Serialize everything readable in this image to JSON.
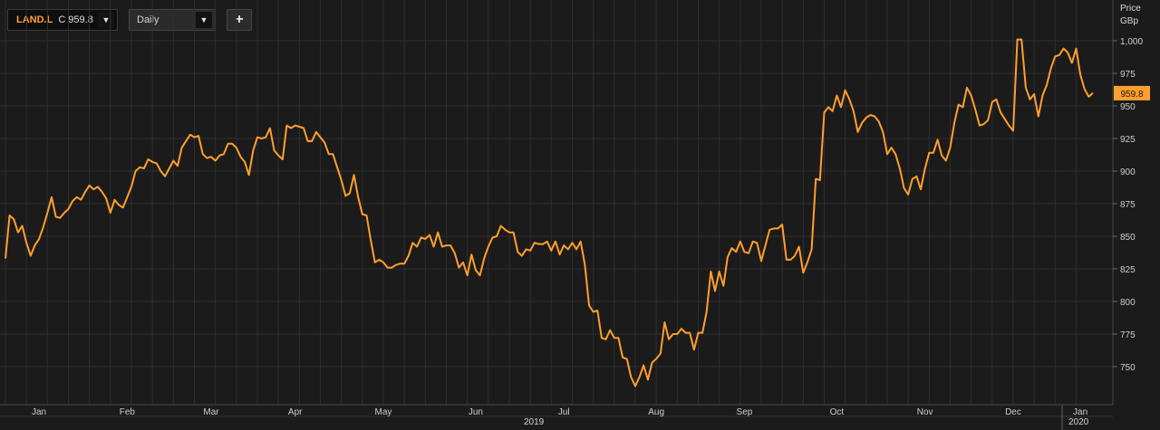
{
  "toolbar": {
    "symbol": "LAND.L",
    "close_prefix": "C",
    "close_value": "959.8",
    "interval": "Daily",
    "add_label": "+",
    "dropdown_glyph": "▼"
  },
  "axis": {
    "price_label": "Price",
    "unit_label": "GBp",
    "year_2019": "2019",
    "year_2020": "2020"
  },
  "colors": {
    "line": "#ff9f2e",
    "grid": "#2f2f2f",
    "background": "#1b1b1b"
  },
  "chart_data": {
    "type": "line",
    "series": [
      {
        "values": [
          833,
          866,
          863,
          853,
          858,
          845,
          835,
          843,
          848,
          857,
          868,
          880,
          865,
          864,
          868,
          871,
          877,
          880,
          878,
          884,
          889,
          886,
          888,
          884,
          879,
          868,
          878,
          874,
          872,
          880,
          888,
          900,
          903,
          902,
          909,
          907,
          906,
          900,
          896,
          902,
          908,
          904,
          918,
          923,
          928,
          926,
          927,
          913,
          910,
          911,
          908,
          912,
          913,
          921,
          921,
          918,
          911,
          907,
          897,
          916,
          926,
          925,
          926,
          933,
          916,
          912,
          909,
          935,
          933,
          935,
          934,
          933,
          923,
          923,
          930,
          926,
          922,
          913,
          913,
          903,
          893,
          881,
          883,
          897,
          880,
          867,
          866,
          847,
          830,
          832,
          830,
          826,
          826,
          828,
          829,
          829,
          835,
          845,
          842,
          849,
          848,
          851,
          842,
          853,
          842,
          843,
          843,
          837,
          826,
          830,
          820,
          836,
          824,
          820,
          833,
          842,
          849,
          850,
          858,
          855,
          853,
          853,
          838,
          835,
          840,
          839,
          845,
          844,
          844,
          846,
          839,
          846,
          836,
          843,
          840,
          845,
          840,
          846,
          828,
          797,
          792,
          793,
          772,
          771,
          778,
          772,
          772,
          757,
          756,
          742,
          735,
          742,
          751,
          740,
          753,
          756,
          760,
          784,
          771,
          775,
          775,
          779,
          776,
          776,
          763,
          776,
          776,
          792,
          823,
          808,
          823,
          812,
          834,
          841,
          838,
          846,
          838,
          837,
          846,
          845,
          831,
          843,
          855,
          856,
          856,
          859,
          832,
          832,
          835,
          842,
          822,
          830,
          840,
          894,
          893,
          945,
          949,
          946,
          958,
          949,
          962,
          955,
          946,
          930,
          937,
          941,
          943,
          942,
          938,
          930,
          913,
          918,
          913,
          902,
          887,
          882,
          894,
          896,
          886,
          902,
          914,
          914,
          924,
          912,
          908,
          918,
          937,
          951,
          949,
          964,
          958,
          947,
          935,
          936,
          939,
          953,
          955,
          945,
          940,
          935,
          931,
          1001,
          1001,
          964,
          955,
          959,
          942,
          958,
          966,
          979,
          988,
          989,
          994,
          991,
          983,
          994,
          974,
          963,
          957,
          960
        ]
      }
    ],
    "x_labels": [
      "Jan",
      "Feb",
      "Mar",
      "Apr",
      "May",
      "Jun",
      "Jul",
      "Aug",
      "Sep",
      "Oct",
      "Nov",
      "Dec",
      "Jan"
    ],
    "x_label_positions_index": [
      8,
      29,
      49,
      69,
      90,
      112,
      133,
      155,
      176,
      198,
      219,
      240,
      256
    ],
    "y_ticks": [
      750,
      775,
      800,
      825,
      850,
      875,
      900,
      925,
      950,
      975,
      1000
    ],
    "y_tick_labels": [
      "750",
      "775",
      "800",
      "825",
      "850",
      "875",
      "900",
      "925",
      "950",
      "975",
      "1,000"
    ],
    "ylim": [
      731,
      1013
    ],
    "last_value": 959.8,
    "last_value_label": "959.8",
    "grid": true
  }
}
